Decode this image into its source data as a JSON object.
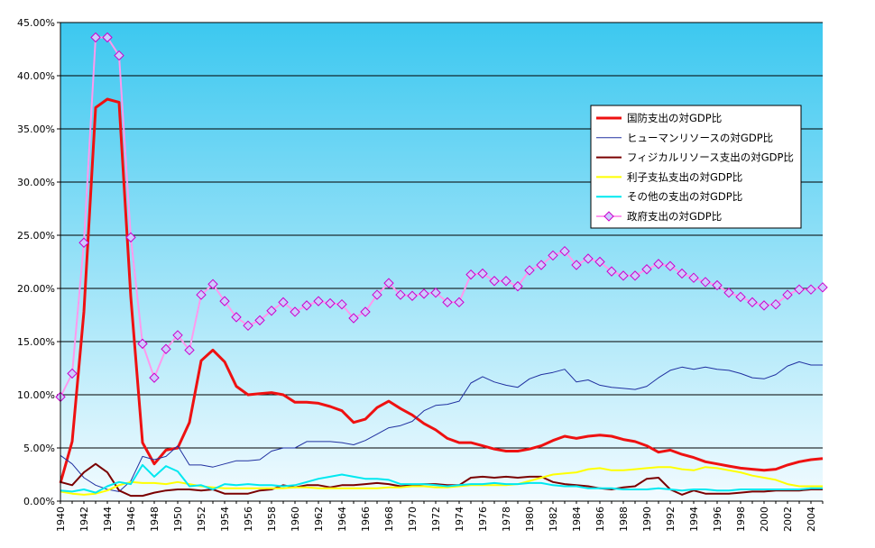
{
  "colors": {
    "plot_bg_top": "#3cc8f0",
    "plot_bg_bottom": "#f2fbff",
    "gridline": "#000000"
  },
  "chart_data": {
    "type": "line",
    "title": "",
    "xlabel": "",
    "ylabel": "",
    "ylim": [
      0,
      45
    ],
    "y_ticks": [
      "0.00%",
      "5.00%",
      "10.00%",
      "15.00%",
      "20.00%",
      "25.00%",
      "30.00%",
      "35.00%",
      "40.00%",
      "45.00%"
    ],
    "x_tick_labels": [
      "1940",
      "1942",
      "1944",
      "1946",
      "1948",
      "1950",
      "1952",
      "1954",
      "1956",
      "1958",
      "1960",
      "1962",
      "1964",
      "1966",
      "1968",
      "1970",
      "1972",
      "1974",
      "1976",
      "1978",
      "1980",
      "1982",
      "1984",
      "1986",
      "1988",
      "1990",
      "1992",
      "1994",
      "1996",
      "1998",
      "2000",
      "2002",
      "2004"
    ],
    "x": [
      1940,
      1941,
      1942,
      1943,
      1944,
      1945,
      1946,
      1947,
      1948,
      1949,
      1950,
      1951,
      1952,
      1953,
      1954,
      1955,
      1956,
      1957,
      1958,
      1959,
      1960,
      1961,
      1962,
      1963,
      1964,
      1965,
      1966,
      1967,
      1968,
      1969,
      1970,
      1971,
      1972,
      1973,
      1974,
      1975,
      1976,
      1977,
      1978,
      1979,
      1980,
      1981,
      1982,
      1983,
      1984,
      1985,
      1986,
      1987,
      1988,
      1989,
      1990,
      1991,
      1992,
      1993,
      1994,
      1995,
      1996,
      1997,
      1998,
      1999,
      2000,
      2001,
      2002,
      2003,
      2004,
      2005
    ],
    "grid": true,
    "legend_position": "right",
    "series": [
      {
        "name": "国防支出の対GDP比",
        "color": "#ee1111",
        "width": 3,
        "marker": "none",
        "values": [
          1.7,
          5.6,
          17.8,
          37.0,
          37.8,
          37.5,
          19.2,
          5.5,
          3.5,
          4.8,
          5.0,
          7.4,
          13.2,
          14.2,
          13.1,
          10.8,
          10.0,
          10.1,
          10.2,
          10.0,
          9.3,
          9.3,
          9.2,
          8.9,
          8.5,
          7.4,
          7.7,
          8.8,
          9.4,
          8.7,
          8.1,
          7.3,
          6.7,
          5.9,
          5.5,
          5.5,
          5.2,
          4.9,
          4.7,
          4.7,
          4.9,
          5.2,
          5.7,
          6.1,
          5.9,
          6.1,
          6.2,
          6.1,
          5.8,
          5.6,
          5.2,
          4.6,
          4.8,
          4.4,
          4.1,
          3.7,
          3.5,
          3.3,
          3.1,
          3.0,
          2.9,
          3.0,
          3.4,
          3.7,
          3.9,
          4.0
        ]
      },
      {
        "name": "ヒューマンリソースの対GDP比",
        "color": "#2030a0",
        "width": 1,
        "marker": "none",
        "values": [
          4.3,
          3.5,
          2.2,
          1.5,
          1.1,
          0.9,
          1.9,
          4.2,
          3.9,
          4.2,
          5.2,
          3.4,
          3.4,
          3.2,
          3.5,
          3.8,
          3.8,
          3.9,
          4.7,
          5.0,
          5.0,
          5.6,
          5.6,
          5.6,
          5.5,
          5.3,
          5.7,
          6.3,
          6.9,
          7.1,
          7.5,
          8.5,
          9.0,
          9.1,
          9.4,
          11.1,
          11.7,
          11.2,
          10.9,
          10.7,
          11.5,
          11.9,
          12.1,
          12.4,
          11.2,
          11.4,
          10.9,
          10.7,
          10.6,
          10.5,
          10.8,
          11.6,
          12.3,
          12.6,
          12.4,
          12.6,
          12.4,
          12.3,
          12.0,
          11.6,
          11.5,
          11.9,
          12.7,
          13.1,
          12.8,
          12.8
        ]
      },
      {
        "name": "フィジカルリソース支出の対GDP比",
        "color": "#7a0000",
        "width": 2,
        "marker": "none",
        "values": [
          1.8,
          1.5,
          2.7,
          3.5,
          2.7,
          1.0,
          0.5,
          0.5,
          0.8,
          1.0,
          1.1,
          1.1,
          1.0,
          1.1,
          0.7,
          0.7,
          0.7,
          1.0,
          1.1,
          1.5,
          1.3,
          1.5,
          1.5,
          1.3,
          1.5,
          1.5,
          1.6,
          1.7,
          1.6,
          1.4,
          1.5,
          1.6,
          1.6,
          1.5,
          1.5,
          2.2,
          2.3,
          2.2,
          2.3,
          2.2,
          2.3,
          2.3,
          1.8,
          1.6,
          1.5,
          1.4,
          1.2,
          1.1,
          1.3,
          1.4,
          2.1,
          2.2,
          1.1,
          0.6,
          1.0,
          0.7,
          0.7,
          0.7,
          0.8,
          0.9,
          0.9,
          1.0,
          1.0,
          1.0,
          1.1,
          1.1
        ]
      },
      {
        "name": "利子支払支出の対GDP比",
        "color": "#ffff00",
        "width": 2,
        "marker": "none",
        "values": [
          0.9,
          0.7,
          0.6,
          0.7,
          1.0,
          1.5,
          1.8,
          1.7,
          1.7,
          1.6,
          1.8,
          1.6,
          1.4,
          1.3,
          1.2,
          1.2,
          1.2,
          1.2,
          1.2,
          1.2,
          1.3,
          1.3,
          1.2,
          1.2,
          1.2,
          1.2,
          1.2,
          1.2,
          1.3,
          1.3,
          1.4,
          1.4,
          1.3,
          1.3,
          1.4,
          1.5,
          1.5,
          1.5,
          1.5,
          1.6,
          1.9,
          2.2,
          2.5,
          2.6,
          2.7,
          3.0,
          3.1,
          2.9,
          2.9,
          3.0,
          3.1,
          3.2,
          3.2,
          3.0,
          2.9,
          3.2,
          3.1,
          2.9,
          2.7,
          2.4,
          2.2,
          2.0,
          1.6,
          1.4,
          1.4,
          1.4
        ]
      },
      {
        "name": "その他の支出の対GDP比",
        "color": "#00e8f0",
        "width": 2,
        "marker": "none",
        "values": [
          1.0,
          0.9,
          1.1,
          0.8,
          1.4,
          1.8,
          1.6,
          3.4,
          2.3,
          3.3,
          2.8,
          1.4,
          1.5,
          1.1,
          1.6,
          1.5,
          1.6,
          1.5,
          1.5,
          1.4,
          1.5,
          1.8,
          2.1,
          2.3,
          2.5,
          2.3,
          2.1,
          2.1,
          2.0,
          1.6,
          1.6,
          1.6,
          1.5,
          1.4,
          1.5,
          1.6,
          1.6,
          1.7,
          1.6,
          1.6,
          1.7,
          1.7,
          1.5,
          1.4,
          1.4,
          1.2,
          1.2,
          1.2,
          1.1,
          1.1,
          1.1,
          1.2,
          1.1,
          1.0,
          1.1,
          1.1,
          1.0,
          1.0,
          1.1,
          1.1,
          1.1,
          1.1,
          1.1,
          1.1,
          1.2,
          1.2
        ]
      },
      {
        "name": "政府支出の対GDP比",
        "color": "#ff99ee",
        "width": 2,
        "marker": "diamond",
        "marker_fill": "#ccccff",
        "marker_stroke": "#cc00cc",
        "values": [
          9.8,
          12.0,
          24.3,
          43.6,
          43.6,
          41.9,
          24.8,
          14.8,
          11.6,
          14.3,
          15.6,
          14.2,
          19.4,
          20.4,
          18.8,
          17.3,
          16.5,
          17.0,
          17.9,
          18.7,
          17.8,
          18.4,
          18.8,
          18.6,
          18.5,
          17.2,
          17.8,
          19.4,
          20.5,
          19.4,
          19.3,
          19.5,
          19.6,
          18.7,
          18.7,
          21.3,
          21.4,
          20.7,
          20.7,
          20.2,
          21.7,
          22.2,
          23.1,
          23.5,
          22.2,
          22.8,
          22.5,
          21.6,
          21.2,
          21.2,
          21.8,
          22.3,
          22.1,
          21.4,
          21.0,
          20.6,
          20.3,
          19.6,
          19.2,
          18.7,
          18.4,
          18.5,
          19.4,
          19.9,
          19.9,
          20.1
        ]
      }
    ]
  }
}
